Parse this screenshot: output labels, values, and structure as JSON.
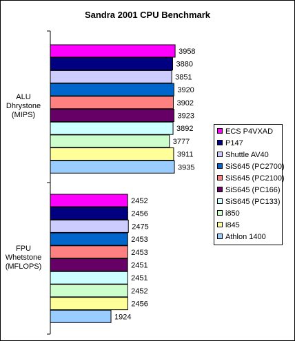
{
  "chart_data": {
    "type": "bar",
    "orientation": "horizontal",
    "title": "Sandra 2001 CPU Benchmark",
    "xlim": [
      0,
      4000
    ],
    "grid": false,
    "legend_position": "right",
    "categories": [
      {
        "label_lines": [
          "ALU",
          "Dhrystone",
          "(MIPS)"
        ]
      },
      {
        "label_lines": [
          "FPU",
          "Whetstone",
          "(MFLOPS)"
        ]
      }
    ],
    "series": [
      {
        "name": "ECS P4VXAD",
        "color": "#ff00ff",
        "values": [
          3958,
          2452
        ]
      },
      {
        "name": "P147",
        "color": "#000080",
        "values": [
          3880,
          2456
        ]
      },
      {
        "name": "Shuttle AV40",
        "color": "#ccccff",
        "values": [
          3851,
          2475
        ]
      },
      {
        "name": "SiS645 (PC2700)",
        "color": "#0066cc",
        "values": [
          3920,
          2453
        ]
      },
      {
        "name": "SiS645 (PC2100)",
        "color": "#ff8080",
        "values": [
          3902,
          2453
        ]
      },
      {
        "name": "SiS645 (PC166)",
        "color": "#660066",
        "values": [
          3923,
          2451
        ]
      },
      {
        "name": "SiS645 (PC133)",
        "color": "#ccffff",
        "values": [
          3892,
          2451
        ]
      },
      {
        "name": "i850",
        "color": "#ccffcc",
        "values": [
          3777,
          2452
        ]
      },
      {
        "name": "i845",
        "color": "#ffff99",
        "values": [
          3911,
          2456
        ]
      },
      {
        "name": "Athlon 1400",
        "color": "#99ccff",
        "values": [
          3935,
          1924
        ]
      }
    ]
  }
}
